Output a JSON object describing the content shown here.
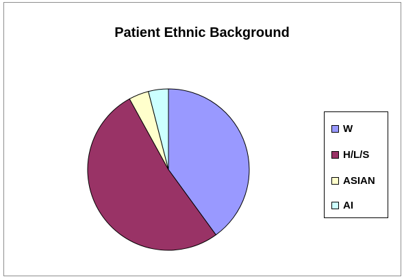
{
  "chart_data": {
    "type": "pie",
    "title": "Patient Ethnic Background",
    "categories": [
      "W",
      "H/L/S",
      "ASIAN",
      "AI"
    ],
    "values": [
      40,
      52,
      4,
      4
    ],
    "colors": [
      "#9999ff",
      "#993366",
      "#ffffcc",
      "#ccffff"
    ],
    "legend_position": "right"
  }
}
